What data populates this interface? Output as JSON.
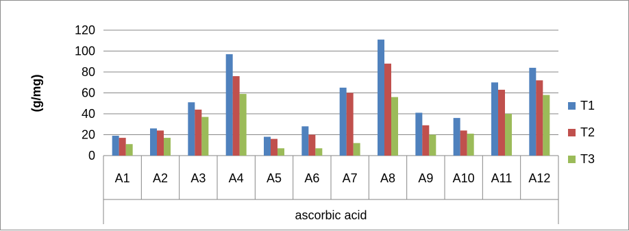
{
  "chart_data": {
    "type": "bar",
    "title": "",
    "xlabel": "ascorbic acid",
    "ylabel": "(g/mg)",
    "categories": [
      "A1",
      "A2",
      "A3",
      "A4",
      "A5",
      "A6",
      "A7",
      "A8",
      "A9",
      "A10",
      "A11",
      "A12"
    ],
    "series": [
      {
        "name": "T1",
        "color": "#4f81bd",
        "values": [
          19,
          26,
          51,
          97,
          18,
          28,
          65,
          111,
          41,
          36,
          70,
          84
        ]
      },
      {
        "name": "T2",
        "color": "#c0504d",
        "values": [
          17,
          24,
          44,
          76,
          16,
          20,
          60,
          88,
          29,
          24,
          63,
          72
        ]
      },
      {
        "name": "T3",
        "color": "#9bbb59",
        "values": [
          11,
          17,
          37,
          59,
          7,
          7,
          12,
          56,
          20,
          21,
          40,
          58
        ]
      }
    ],
    "ylim": [
      0,
      120
    ],
    "yticks": [
      0,
      20,
      40,
      60,
      80,
      100,
      120
    ],
    "grid": true,
    "legend_position": "right"
  }
}
